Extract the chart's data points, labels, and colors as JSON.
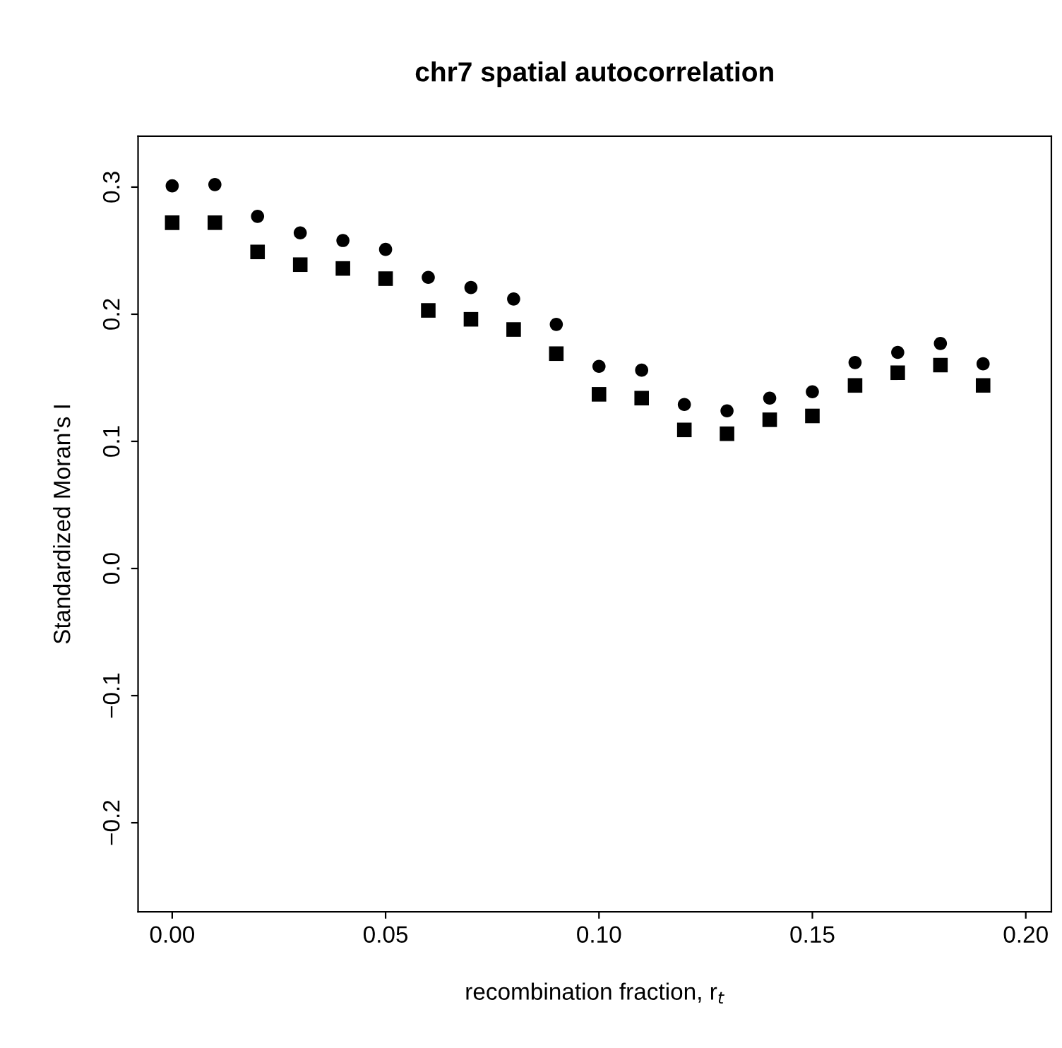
{
  "chart_data": {
    "type": "scatter",
    "title": "chr7 spatial autocorrelation",
    "xlabel": "recombination fraction, r$_{t}$",
    "ylabel": "Standardized Moran's I",
    "x": [
      0.0,
      0.01,
      0.02,
      0.03,
      0.04,
      0.05,
      0.06,
      0.07,
      0.08,
      0.09,
      0.1,
      0.11,
      0.12,
      0.13,
      0.14,
      0.15,
      0.16,
      0.17,
      0.18,
      0.19
    ],
    "series": [
      {
        "color": "#000000",
        "marker": "circle",
        "values": [
          0.301,
          0.302,
          0.277,
          0.264,
          0.258,
          0.251,
          0.229,
          0.221,
          0.212,
          0.192,
          0.159,
          0.156,
          0.129,
          0.124,
          0.134,
          0.139,
          0.162,
          0.17,
          0.177,
          0.161
        ]
      },
      {
        "color": "#000000",
        "marker": "square",
        "values": [
          0.272,
          0.272,
          0.249,
          0.239,
          0.236,
          0.228,
          0.203,
          0.196,
          0.188,
          0.169,
          0.137,
          0.134,
          0.109,
          0.106,
          0.117,
          0.12,
          0.144,
          0.154,
          0.16,
          0.144
        ]
      }
    ],
    "xlim": [
      -0.008,
      0.206
    ],
    "ylim": [
      -0.27,
      0.34
    ],
    "xticks": [
      {
        "value": 0,
        "label": "0.00"
      },
      0.05,
      {
        "value": 0.1,
        "label": "0.10"
      },
      0.15,
      {
        "value": 0.2,
        "label": "0.20"
      }
    ],
    "yticks": [
      {
        "value": -0.2,
        "label": "−0.2"
      },
      {
        "value": -0.1,
        "label": "−0.1"
      },
      {
        "value": 0,
        "label": "0.0"
      },
      0.1,
      0.2,
      0.3
    ],
    "grid": false
  }
}
